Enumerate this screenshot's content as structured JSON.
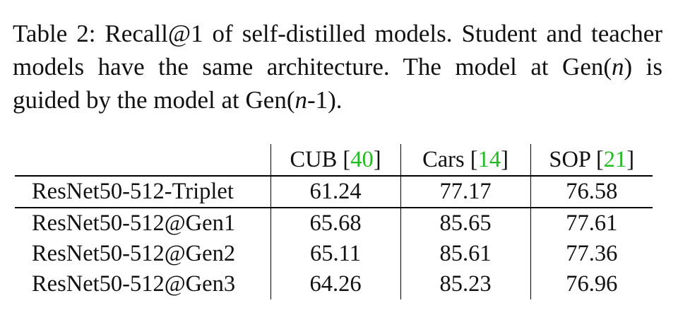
{
  "caption": {
    "part1": "Table 2: Recall@1 of self-distilled models. Student and teacher models have the same architecture. The model at Gen(",
    "n1": "n",
    "part2": ") is guided by the model at Gen(",
    "n2": "n",
    "part3": "-1)."
  },
  "table": {
    "columns": [
      {
        "name": "CUB",
        "cite": "40"
      },
      {
        "name": "Cars",
        "cite": "14"
      },
      {
        "name": "SOP",
        "cite": "21"
      }
    ],
    "rows": [
      {
        "model": "ResNet50-512-Triplet",
        "values": [
          "61.24",
          "77.17",
          "76.58"
        ]
      },
      {
        "model": "ResNet50-512@Gen1",
        "values": [
          "65.68",
          "85.65",
          "77.61"
        ],
        "bold": true
      },
      {
        "model": "ResNet50-512@Gen2",
        "values": [
          "65.11",
          "85.61",
          "77.36"
        ]
      },
      {
        "model": "ResNet50-512@Gen3",
        "values": [
          "64.26",
          "85.23",
          "76.96"
        ]
      }
    ]
  },
  "colors": {
    "citation": "#22bb22",
    "text": "#111111"
  }
}
